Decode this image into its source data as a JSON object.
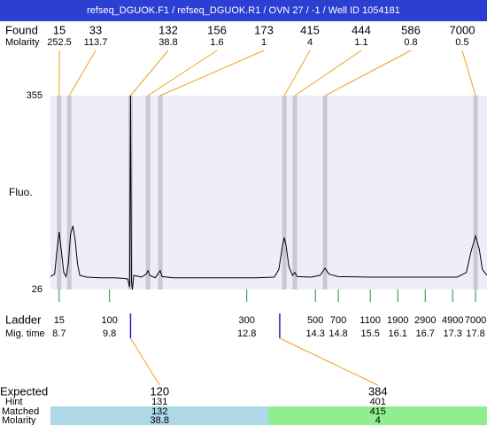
{
  "chart_data": {
    "type": "electropherogram",
    "title": "refseq_DGUOK.F1 / refseq_DGUOK.R1 / OVN 27 / -1 / Well ID 1054181",
    "found_label": "Found",
    "found_molarity_label": "Molarity",
    "found": [
      {
        "size": 15,
        "molarity": 252.5,
        "time": 8.7
      },
      {
        "size": 33,
        "molarity": 113.7,
        "time": 8.92
      },
      {
        "size": 132,
        "molarity": 38.8,
        "time": 10.26
      },
      {
        "size": 156,
        "molarity": 1.6,
        "time": 10.64
      },
      {
        "size": 173,
        "molarity": 1,
        "time": 10.91
      },
      {
        "size": 415,
        "molarity": 4,
        "time": 13.62
      },
      {
        "size": 444,
        "molarity": 1.1,
        "time": 13.85
      },
      {
        "size": 586,
        "molarity": 0.8,
        "time": 14.51
      },
      {
        "size": 7000,
        "molarity": 0.5,
        "time": 17.8
      }
    ],
    "y_label": "Fluo.",
    "xlim": [
      8.51,
      18.05
    ],
    "ylim": [
      26,
      355
    ],
    "yticks": [
      26,
      355
    ],
    "trace": {
      "x": [
        8.51,
        8.6,
        8.65,
        8.7,
        8.75,
        8.8,
        8.85,
        8.9,
        8.95,
        9.0,
        9.05,
        9.1,
        9.15,
        9.3,
        9.6,
        9.9,
        10.1,
        10.2,
        10.24,
        10.26,
        10.28,
        10.3,
        10.33,
        10.5,
        10.6,
        10.64,
        10.68,
        10.8,
        10.88,
        10.91,
        10.95,
        11.2,
        12.0,
        13.0,
        13.4,
        13.5,
        13.58,
        13.62,
        13.66,
        13.72,
        13.8,
        13.85,
        13.9,
        14.2,
        14.4,
        14.51,
        14.6,
        14.8,
        15.5,
        16.5,
        17.4,
        17.6,
        17.7,
        17.8,
        17.88,
        17.95,
        18.05
      ],
      "y": [
        48,
        52,
        90,
        124,
        90,
        55,
        48,
        70,
        120,
        134,
        110,
        70,
        50,
        47,
        46,
        46,
        45,
        44,
        30,
        355,
        40,
        26,
        50,
        47,
        52,
        58,
        50,
        46,
        55,
        58,
        48,
        46,
        46,
        46,
        47,
        60,
        100,
        114,
        100,
        65,
        50,
        55,
        48,
        47,
        50,
        62,
        52,
        48,
        47,
        47,
        47,
        55,
        90,
        117,
        95,
        60,
        50
      ]
    },
    "ladder_label": "Ladder",
    "mig_time_label": "Mig. time",
    "ladder": [
      {
        "size": 15,
        "time": 8.7
      },
      {
        "size": 100,
        "time": 9.8
      },
      {
        "size": 300,
        "time": 12.8
      },
      {
        "size": 500,
        "time": 14.3
      },
      {
        "size": 700,
        "time": 14.8
      },
      {
        "size": 1100,
        "time": 15.5
      },
      {
        "size": 1900,
        "time": 16.1
      },
      {
        "size": 2900,
        "time": 16.7
      },
      {
        "size": 4900,
        "time": 17.3
      },
      {
        "size": 7000,
        "time": 17.8
      }
    ],
    "expected_label": "Expected",
    "hint_label": "Hint",
    "matched_label": "Matched",
    "molarity_label": "Molarity",
    "expected": [
      {
        "size": 120,
        "time": 10.26,
        "hint": 131,
        "matched": 132,
        "molarity": 38.8,
        "color": "#add8e6"
      },
      {
        "size": 384,
        "time": 13.52,
        "hint": 401,
        "matched": 415,
        "molarity": 4,
        "color": "#90ee90"
      }
    ]
  }
}
